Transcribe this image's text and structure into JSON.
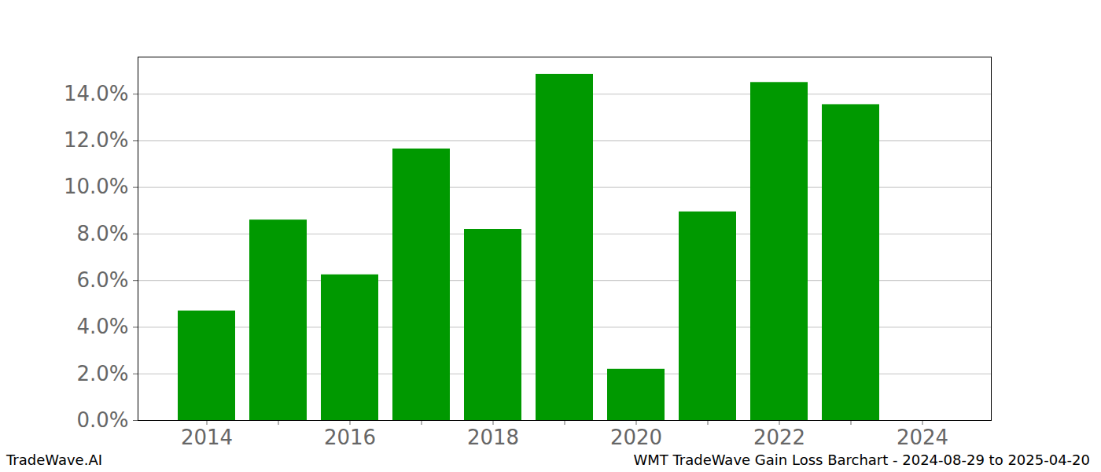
{
  "chart_data": {
    "type": "bar",
    "title": "WMT TradeWave Gain Loss Barchart - 2024-08-29 to 2025-04-20",
    "subtitle": "TradeWave.AI",
    "categories": [
      2014,
      null,
      2016,
      null,
      2018,
      null,
      2020,
      null,
      2022,
      null,
      2024
    ],
    "values": [
      4.7,
      8.6,
      6.25,
      11.65,
      8.2,
      14.85,
      2.2,
      8.95,
      14.5,
      13.55,
      0
    ],
    "color": "#009900",
    "ylim": [
      0,
      15.59
    ],
    "yticks": [
      {
        "value": 0,
        "label": "0.0%"
      },
      {
        "value": 2,
        "label": "2.0%"
      },
      {
        "value": 4,
        "label": "4.0%"
      },
      {
        "value": 6,
        "label": "6.0%"
      },
      {
        "value": 8,
        "label": "8.0%"
      },
      {
        "value": 10,
        "label": "10.0%"
      },
      {
        "value": 12,
        "label": "12.0%"
      },
      {
        "value": 14,
        "label": "14.0%"
      }
    ],
    "grid": true
  }
}
